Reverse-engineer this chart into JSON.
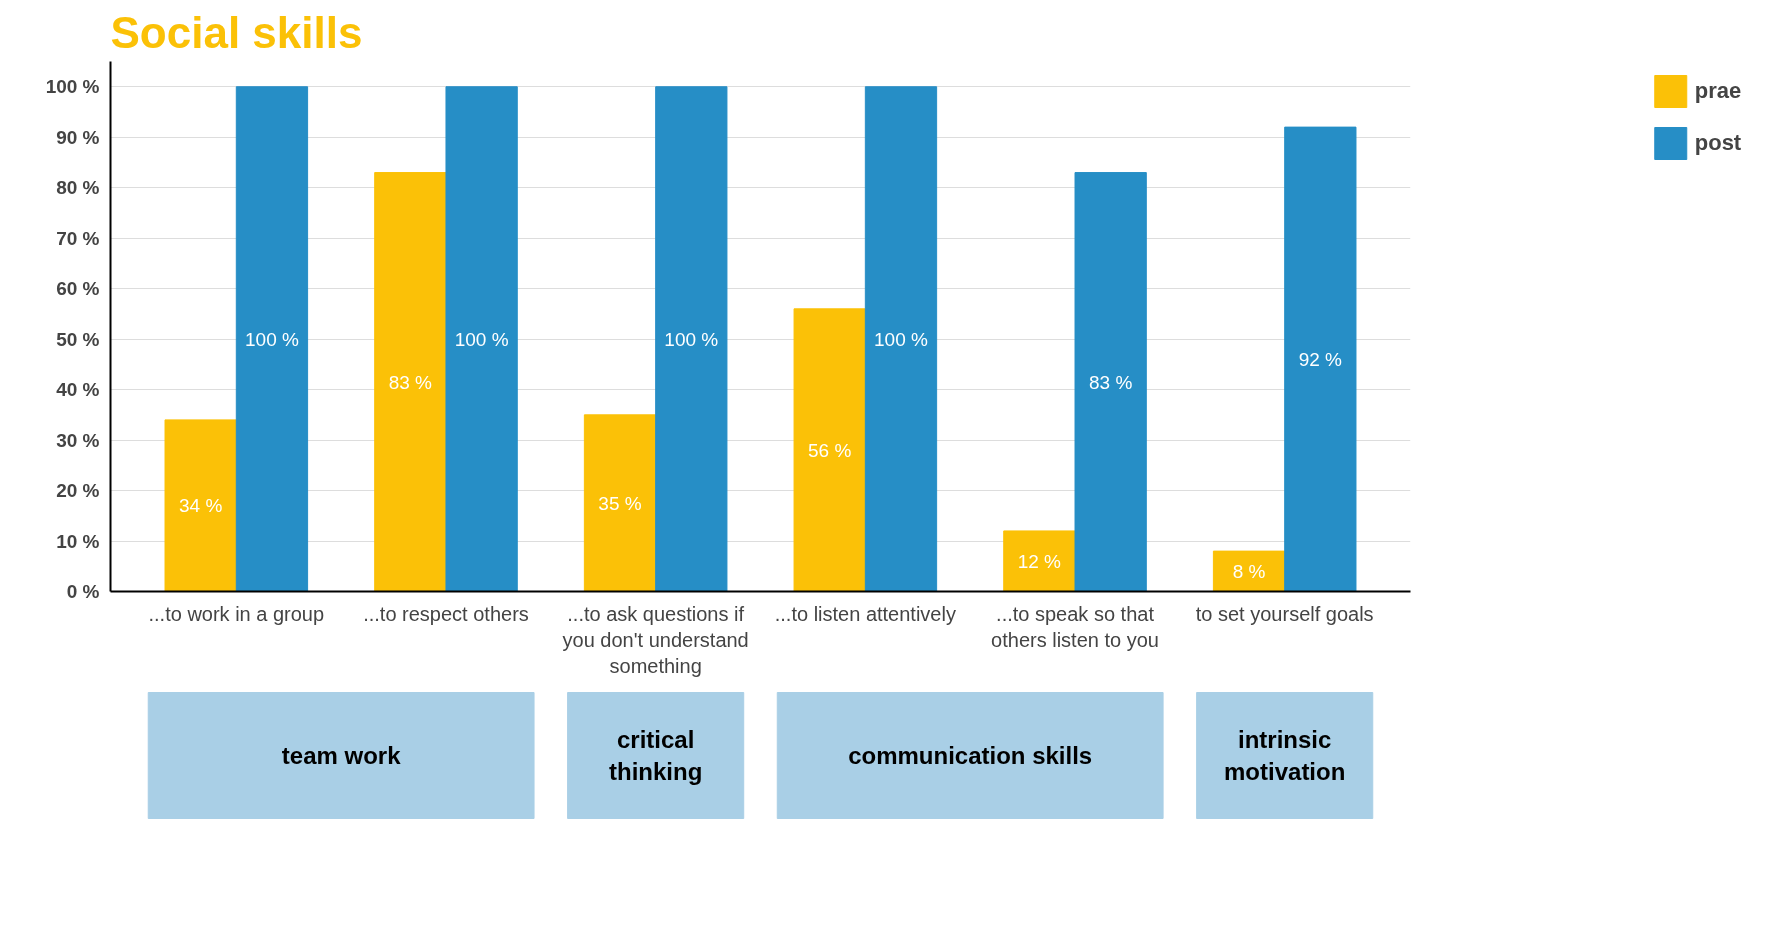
{
  "chart_data": {
    "type": "bar",
    "title": "Social skills",
    "categories": [
      "...to work in a group",
      "...to respect others",
      "...to ask questions if you don't understand something",
      "...to listen attentively",
      "...to speak so that others listen to you",
      "to set yourself goals"
    ],
    "series": [
      {
        "name": "prae",
        "color": "#fbc107",
        "values": [
          34,
          83,
          35,
          56,
          12,
          8
        ],
        "value_labels": [
          "34 %",
          "83 %",
          "35 %",
          "56 %",
          "12 %",
          "8 %"
        ]
      },
      {
        "name": "post",
        "color": "#268ec6",
        "values": [
          100,
          100,
          100,
          100,
          83,
          92
        ],
        "value_labels": [
          "100 %",
          "100 %",
          "100 %",
          "100 %",
          "83 %",
          "92 %"
        ]
      }
    ],
    "ylim": [
      0,
      105
    ],
    "yticks": [
      {
        "value": 0,
        "label": "0 %"
      },
      {
        "value": 10,
        "label": "10 %"
      },
      {
        "value": 20,
        "label": "20 %"
      },
      {
        "value": 30,
        "label": "30 %"
      },
      {
        "value": 40,
        "label": "40 %"
      },
      {
        "value": 50,
        "label": "50 %"
      },
      {
        "value": 60,
        "label": "60 %"
      },
      {
        "value": 70,
        "label": "70 %"
      },
      {
        "value": 80,
        "label": "80 %"
      },
      {
        "value": 90,
        "label": "90 %"
      },
      {
        "value": 100,
        "label": "100 %"
      }
    ],
    "grid": "y",
    "legend": "top right",
    "annotations": [
      "team work",
      "critical thinking",
      "communication skills",
      "intrinsic motivation"
    ]
  }
}
